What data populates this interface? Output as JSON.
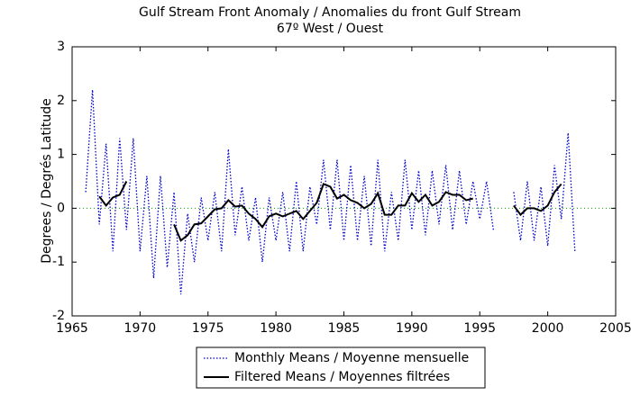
{
  "chart_data": {
    "type": "line",
    "title": "Gulf Stream Front Anomaly / Anomalies du front Gulf Stream",
    "subtitle": "67º  West / Ouest",
    "y_label": "Degrees / Degrés Latitude",
    "x": [
      1966,
      1966.5,
      1967,
      1967.5,
      1968,
      1968.5,
      1969,
      1969.5,
      1970,
      1970.5,
      1971,
      1971.5,
      1972,
      1972.5,
      1973,
      1973.5,
      1974,
      1974.5,
      1975,
      1975.5,
      1976,
      1976.5,
      1977,
      1977.5,
      1978,
      1978.5,
      1979,
      1979.5,
      1980,
      1980.5,
      1981,
      1981.5,
      1982,
      1982.5,
      1983,
      1983.5,
      1984,
      1984.5,
      1985,
      1985.5,
      1986,
      1986.5,
      1987,
      1987.5,
      1988,
      1988.5,
      1989,
      1989.5,
      1990,
      1990.5,
      1991,
      1991.5,
      1992,
      1992.5,
      1993,
      1993.5,
      1994,
      1994.5,
      1995,
      1995.5,
      1996,
      1996.5,
      1997,
      1997.5,
      1998,
      1998.5,
      1999,
      1999.5,
      2000,
      2000.5,
      2001,
      2001.5,
      2002
    ],
    "series": [
      {
        "name": "Monthly Means / Moyenne mensuelle",
        "color": "#0000c8",
        "style": "dotted",
        "values": [
          0.3,
          2.2,
          -0.3,
          1.2,
          -0.8,
          1.3,
          -0.4,
          1.3,
          -0.8,
          0.6,
          -1.3,
          0.6,
          -1.1,
          0.3,
          -1.6,
          -0.1,
          -1.0,
          0.2,
          -0.6,
          0.3,
          -0.8,
          1.1,
          -0.5,
          0.4,
          -0.6,
          0.2,
          -1.0,
          0.2,
          -0.6,
          0.3,
          -0.8,
          0.5,
          -0.8,
          0.4,
          -0.3,
          0.9,
          -0.4,
          0.9,
          -0.6,
          0.8,
          -0.6,
          0.6,
          -0.7,
          0.9,
          -0.8,
          0.3,
          -0.6,
          0.9,
          -0.4,
          0.7,
          -0.5,
          0.7,
          -0.3,
          0.8,
          -0.4,
          0.7,
          -0.3,
          0.5,
          -0.2,
          0.5,
          -0.4,
          null,
          null,
          0.3,
          -0.6,
          0.5,
          -0.6,
          0.4,
          -0.7,
          0.8,
          -0.2,
          1.4,
          -0.8
        ]
      },
      {
        "name": "Filtered Means / Moyennes filtrées",
        "color": "#000000",
        "style": "solid",
        "values": [
          null,
          null,
          0.22,
          0.05,
          0.2,
          0.25,
          0.5,
          null,
          null,
          null,
          null,
          null,
          null,
          -0.3,
          -0.6,
          -0.5,
          -0.3,
          -0.28,
          -0.15,
          -0.02,
          0.0,
          0.15,
          0.03,
          0.05,
          -0.1,
          -0.2,
          -0.35,
          -0.15,
          -0.1,
          -0.15,
          -0.1,
          -0.05,
          -0.2,
          -0.05,
          0.1,
          0.45,
          0.4,
          0.18,
          0.25,
          0.15,
          0.1,
          0.0,
          0.08,
          0.28,
          -0.12,
          -0.12,
          0.05,
          0.05,
          0.28,
          0.12,
          0.25,
          0.05,
          0.12,
          0.3,
          0.25,
          0.25,
          0.15,
          0.18,
          null,
          null,
          null,
          null,
          null,
          0.05,
          -0.12,
          0.0,
          0.0,
          -0.05,
          0.05,
          0.3,
          0.45,
          null,
          null
        ]
      }
    ],
    "zero_line": {
      "value": 0,
      "color": "#00a000"
    },
    "xlim": [
      1965,
      2005
    ],
    "xticks": [
      1965,
      1970,
      1975,
      1980,
      1985,
      1990,
      1995,
      2000,
      2005
    ],
    "ylim": [
      -2,
      3
    ],
    "yticks": [
      -2,
      -1,
      0,
      1,
      2,
      3
    ],
    "grid": false,
    "legend": "bottom"
  }
}
